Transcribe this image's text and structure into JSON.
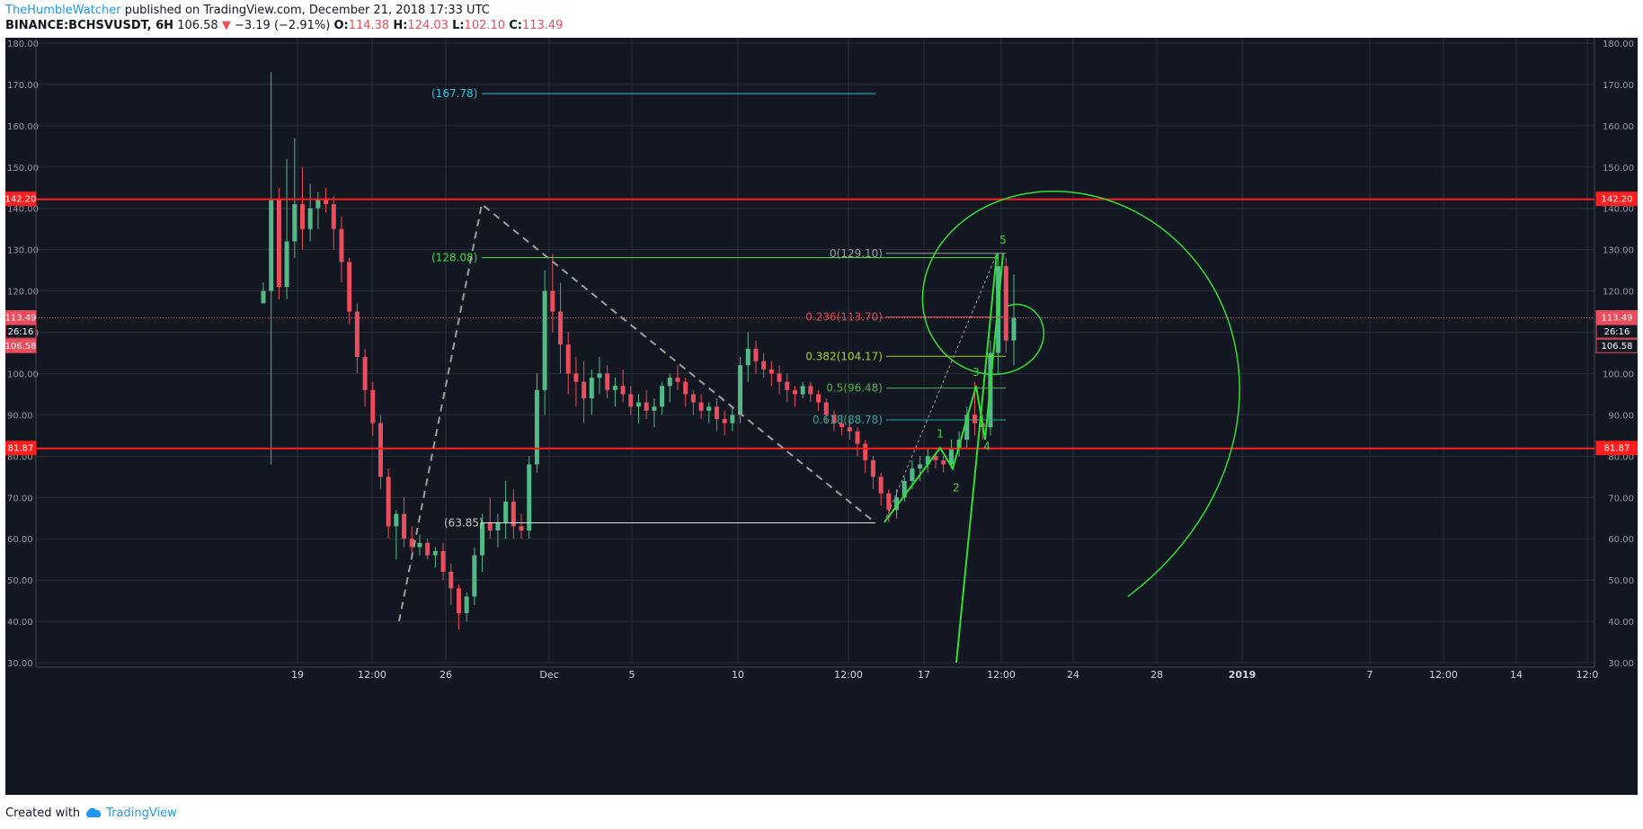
{
  "header": {
    "author": "TheHumbleWatcher",
    "published_text": "published on TradingView.com, December 21, 2018 17:33 UTC",
    "symbol": "BINANCE:BCHSVUSDT, 6H",
    "last": "106.58",
    "change_arrow": "▼",
    "change": "−3.19 (−2.91%)",
    "o_label": "O:",
    "o_value": "114.38",
    "h_label": "H:",
    "h_value": "124.03",
    "l_label": "L:",
    "l_value": "102.10",
    "c_label": "C:",
    "c_value": "113.49"
  },
  "footer": {
    "created_with": "Created with",
    "brand": "TradingView"
  },
  "colors": {
    "background": "#131722",
    "up": "#53b987",
    "down": "#eb4d5c",
    "grid": "#2a2e39",
    "hline": "#ff1f1f",
    "fib_text_cyan": "#26c6da",
    "green": "#33dd33"
  },
  "chart_data": {
    "type": "candlestick",
    "symbol": "BINANCE:BCHSVUSDT",
    "interval": "6H",
    "ylim": [
      30,
      180
    ],
    "y_ticks": [
      "180.00",
      "170.00",
      "160.00",
      "150.00",
      "140.00",
      "130.00",
      "120.00",
      "110.00",
      "100.00",
      "90.00",
      "80.00",
      "70.00",
      "60.00",
      "50.00",
      "40.00",
      "30.00"
    ],
    "x_ticks": [
      "19",
      "12:00",
      "26",
      "Dec",
      "5",
      "10",
      "12:00",
      "17",
      "12:00",
      "24",
      "28",
      "2019",
      "7",
      "12:00",
      "14",
      "12:0"
    ],
    "x_tick_bold": [
      "2019"
    ],
    "price_badges": [
      {
        "label": "142.20",
        "value": 142.2,
        "color": "#ff1f1f"
      },
      {
        "label": "113.49",
        "value": 113.49,
        "color": "#eb4d5c"
      },
      {
        "label": "26:16",
        "value": 110.1,
        "color": "#eb4d5c"
      },
      {
        "label": "106.58",
        "value": 106.58,
        "color": "#eb4d5c"
      },
      {
        "label": "81.87",
        "value": 81.87,
        "color": "#ff1f1f"
      }
    ],
    "horizontal_lines": [
      142.2,
      81.87
    ],
    "fib_labels": [
      {
        "label": "(167.78)",
        "value": 167.78,
        "color": "#26c6da"
      },
      {
        "label": "(128.08)",
        "value": 128.08,
        "color": "#33dd33"
      },
      {
        "label": "(63.85)",
        "value": 63.85,
        "color": "#c8c8c8"
      },
      {
        "label": "0(129.10)",
        "value": 129.1,
        "color": "#9e9e9e"
      },
      {
        "label": "0.236(113.70)",
        "value": 113.7,
        "color": "#e0464e"
      },
      {
        "label": "0.382(104.17)",
        "value": 104.17,
        "color": "#a8d020"
      },
      {
        "label": "0.5(96.48)",
        "value": 96.48,
        "color": "#4caf50"
      },
      {
        "label": "0.618(88.78)",
        "value": 88.78,
        "color": "#26a69a"
      }
    ],
    "wave_labels": [
      "1",
      "2",
      "3",
      "4",
      "5"
    ],
    "candles": [
      [
        117,
        122,
        117,
        120
      ],
      [
        120,
        173,
        78,
        142
      ],
      [
        142,
        145,
        118,
        121
      ],
      [
        121,
        152,
        118,
        132
      ],
      [
        132,
        157,
        128,
        141
      ],
      [
        141,
        150,
        130,
        135
      ],
      [
        135,
        146,
        132,
        140
      ],
      [
        140,
        144,
        135,
        142
      ],
      [
        142,
        145,
        139,
        141
      ],
      [
        141,
        143,
        130,
        135
      ],
      [
        135,
        138,
        122,
        127
      ],
      [
        127,
        128,
        112,
        115
      ],
      [
        115,
        117,
        100,
        104
      ],
      [
        104,
        106,
        92,
        96
      ],
      [
        96,
        98,
        85,
        88
      ],
      [
        88,
        90,
        72,
        75
      ],
      [
        75,
        77,
        60,
        63
      ],
      [
        63,
        67,
        55,
        66
      ],
      [
        66,
        70,
        58,
        60
      ],
      [
        60,
        63,
        56,
        58
      ],
      [
        58,
        61,
        56,
        59
      ],
      [
        59,
        60,
        55,
        56
      ],
      [
        56,
        58,
        53,
        57
      ],
      [
        57,
        59,
        50,
        52
      ],
      [
        52,
        54,
        44,
        48
      ],
      [
        48,
        49,
        38,
        42
      ],
      [
        42,
        47,
        40,
        46
      ],
      [
        46,
        58,
        44,
        56
      ],
      [
        56,
        66,
        52,
        64
      ],
      [
        64,
        70,
        60,
        62
      ],
      [
        62,
        66,
        58,
        64
      ],
      [
        64,
        74,
        60,
        69
      ],
      [
        69,
        72,
        60,
        63
      ],
      [
        63,
        66,
        60,
        62
      ],
      [
        62,
        80,
        60,
        78
      ],
      [
        78,
        100,
        76,
        96
      ],
      [
        96,
        125,
        90,
        120
      ],
      [
        120,
        129,
        110,
        115
      ],
      [
        115,
        122,
        100,
        107
      ],
      [
        107,
        110,
        95,
        100
      ],
      [
        100,
        104,
        92,
        98
      ],
      [
        98,
        103,
        88,
        94
      ],
      [
        94,
        101,
        90,
        99
      ],
      [
        99,
        104,
        95,
        100
      ],
      [
        100,
        102,
        94,
        96
      ],
      [
        96,
        99,
        92,
        97
      ],
      [
        97,
        101,
        93,
        95
      ],
      [
        95,
        97,
        90,
        92
      ],
      [
        92,
        95,
        88,
        93
      ],
      [
        93,
        96,
        89,
        91
      ],
      [
        91,
        94,
        87,
        92
      ],
      [
        92,
        98,
        90,
        97
      ],
      [
        97,
        100,
        93,
        99
      ],
      [
        99,
        102,
        96,
        98
      ],
      [
        98,
        99,
        92,
        95
      ],
      [
        95,
        96,
        90,
        93
      ],
      [
        93,
        95,
        89,
        91
      ],
      [
        91,
        93,
        88,
        92
      ],
      [
        92,
        94,
        86,
        89
      ],
      [
        89,
        91,
        85,
        88
      ],
      [
        88,
        92,
        86,
        90
      ],
      [
        90,
        104,
        88,
        102
      ],
      [
        102,
        110,
        98,
        106
      ],
      [
        106,
        108,
        100,
        103
      ],
      [
        103,
        105,
        99,
        101
      ],
      [
        101,
        103,
        97,
        100
      ],
      [
        100,
        102,
        95,
        98
      ],
      [
        98,
        100,
        93,
        96
      ],
      [
        96,
        97,
        92,
        95
      ],
      [
        95,
        98,
        94,
        97
      ],
      [
        97,
        98,
        93,
        95
      ],
      [
        95,
        96,
        91,
        93
      ],
      [
        93,
        94,
        88,
        90
      ],
      [
        90,
        91,
        86,
        88
      ],
      [
        88,
        90,
        85,
        87
      ],
      [
        87,
        89,
        84,
        86
      ],
      [
        86,
        87,
        80,
        83
      ],
      [
        83,
        84,
        76,
        79
      ],
      [
        79,
        80,
        72,
        75
      ],
      [
        75,
        76,
        68,
        71
      ],
      [
        71,
        72,
        64,
        67
      ],
      [
        67,
        72,
        65,
        70
      ],
      [
        70,
        75,
        69,
        74
      ],
      [
        74,
        79,
        72,
        77
      ],
      [
        77,
        80,
        74,
        78
      ],
      [
        78,
        82,
        76,
        80
      ],
      [
        80,
        81,
        77,
        79
      ],
      [
        79,
        80,
        76,
        78
      ],
      [
        78,
        84,
        77,
        82
      ],
      [
        82,
        86,
        80,
        84
      ],
      [
        84,
        92,
        82,
        90
      ],
      [
        90,
        98,
        85,
        88
      ],
      [
        88,
        90,
        84,
        87
      ],
      [
        87,
        108,
        85,
        105
      ],
      [
        105,
        129,
        100,
        126
      ],
      [
        126,
        128,
        105,
        108
      ],
      [
        108,
        124,
        102,
        113.49
      ]
    ]
  }
}
